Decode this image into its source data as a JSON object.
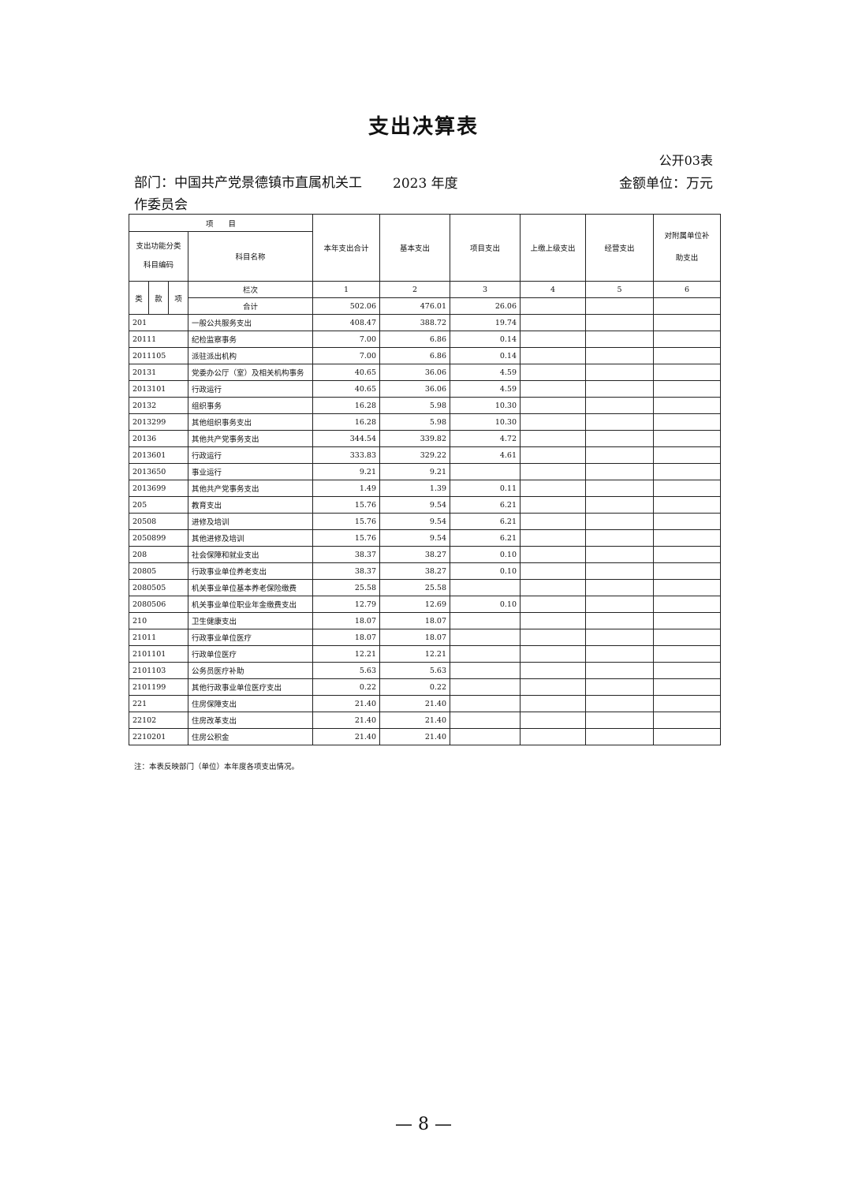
{
  "title": "支出决算表",
  "form_no": "公开03表",
  "department": "部门：中国共产党景德镇市直属机关工作委员会",
  "year": "2023 年度",
  "unit": "金额单位：万元",
  "header": {
    "item": "项　　目",
    "func_class": "支出功能分类",
    "subject_code": "科目编码",
    "subject_name": "科目名称",
    "lei": "类",
    "kuan": "款",
    "xiang": "项",
    "lanci": "栏次",
    "total_label": "合计",
    "columns": [
      "本年支出合计",
      "基本支出",
      "项目支出",
      "上缴上级支出",
      "经营支出",
      "对附属单位补助支出"
    ],
    "column_numbers": [
      "1",
      "2",
      "3",
      "4",
      "5",
      "6"
    ],
    "totals": [
      "502.06",
      "476.01",
      "26.06",
      "",
      "",
      ""
    ]
  },
  "rows": [
    {
      "code": "201",
      "name": "一般公共服务支出",
      "values": [
        "408.47",
        "388.72",
        "19.74",
        "",
        "",
        ""
      ]
    },
    {
      "code": "20111",
      "name": "纪检监察事务",
      "values": [
        "7.00",
        "6.86",
        "0.14",
        "",
        "",
        ""
      ]
    },
    {
      "code": "2011105",
      "name": "派驻派出机构",
      "values": [
        "7.00",
        "6.86",
        "0.14",
        "",
        "",
        ""
      ]
    },
    {
      "code": "20131",
      "name": "党委办公厅（室）及相关机构事务",
      "values": [
        "40.65",
        "36.06",
        "4.59",
        "",
        "",
        ""
      ]
    },
    {
      "code": "2013101",
      "name": "行政运行",
      "values": [
        "40.65",
        "36.06",
        "4.59",
        "",
        "",
        ""
      ]
    },
    {
      "code": "20132",
      "name": "组织事务",
      "values": [
        "16.28",
        "5.98",
        "10.30",
        "",
        "",
        ""
      ]
    },
    {
      "code": "2013299",
      "name": "其他组织事务支出",
      "values": [
        "16.28",
        "5.98",
        "10.30",
        "",
        "",
        ""
      ]
    },
    {
      "code": "20136",
      "name": "其他共产党事务支出",
      "values": [
        "344.54",
        "339.82",
        "4.72",
        "",
        "",
        ""
      ]
    },
    {
      "code": "2013601",
      "name": "行政运行",
      "values": [
        "333.83",
        "329.22",
        "4.61",
        "",
        "",
        ""
      ]
    },
    {
      "code": "2013650",
      "name": "事业运行",
      "values": [
        "9.21",
        "9.21",
        "",
        "",
        "",
        ""
      ]
    },
    {
      "code": "2013699",
      "name": "其他共产党事务支出",
      "values": [
        "1.49",
        "1.39",
        "0.11",
        "",
        "",
        ""
      ]
    },
    {
      "code": "205",
      "name": "教育支出",
      "values": [
        "15.76",
        "9.54",
        "6.21",
        "",
        "",
        ""
      ]
    },
    {
      "code": "20508",
      "name": "进修及培训",
      "values": [
        "15.76",
        "9.54",
        "6.21",
        "",
        "",
        ""
      ]
    },
    {
      "code": "2050899",
      "name": "其他进修及培训",
      "values": [
        "15.76",
        "9.54",
        "6.21",
        "",
        "",
        ""
      ]
    },
    {
      "code": "208",
      "name": "社会保障和就业支出",
      "values": [
        "38.37",
        "38.27",
        "0.10",
        "",
        "",
        ""
      ]
    },
    {
      "code": "20805",
      "name": "行政事业单位养老支出",
      "values": [
        "38.37",
        "38.27",
        "0.10",
        "",
        "",
        ""
      ]
    },
    {
      "code": "2080505",
      "name": "机关事业单位基本养老保险缴费",
      "values": [
        "25.58",
        "25.58",
        "",
        "",
        "",
        ""
      ]
    },
    {
      "code": "2080506",
      "name": "机关事业单位职业年金缴费支出",
      "values": [
        "12.79",
        "12.69",
        "0.10",
        "",
        "",
        ""
      ]
    },
    {
      "code": "210",
      "name": "卫生健康支出",
      "values": [
        "18.07",
        "18.07",
        "",
        "",
        "",
        ""
      ]
    },
    {
      "code": "21011",
      "name": "行政事业单位医疗",
      "values": [
        "18.07",
        "18.07",
        "",
        "",
        "",
        ""
      ]
    },
    {
      "code": "2101101",
      "name": "行政单位医疗",
      "values": [
        "12.21",
        "12.21",
        "",
        "",
        "",
        ""
      ]
    },
    {
      "code": "2101103",
      "name": "公务员医疗补助",
      "values": [
        "5.63",
        "5.63",
        "",
        "",
        "",
        ""
      ]
    },
    {
      "code": "2101199",
      "name": "其他行政事业单位医疗支出",
      "values": [
        "0.22",
        "0.22",
        "",
        "",
        "",
        ""
      ]
    },
    {
      "code": "221",
      "name": "住房保障支出",
      "values": [
        "21.40",
        "21.40",
        "",
        "",
        "",
        ""
      ]
    },
    {
      "code": "22102",
      "name": "住房改革支出",
      "values": [
        "21.40",
        "21.40",
        "",
        "",
        "",
        ""
      ]
    },
    {
      "code": "2210201",
      "name": "住房公积金",
      "values": [
        "21.40",
        "21.40",
        "",
        "",
        "",
        ""
      ]
    }
  ],
  "note": "注：本表反映部门（单位）本年度各项支出情况。",
  "page_number": "— 8 —"
}
